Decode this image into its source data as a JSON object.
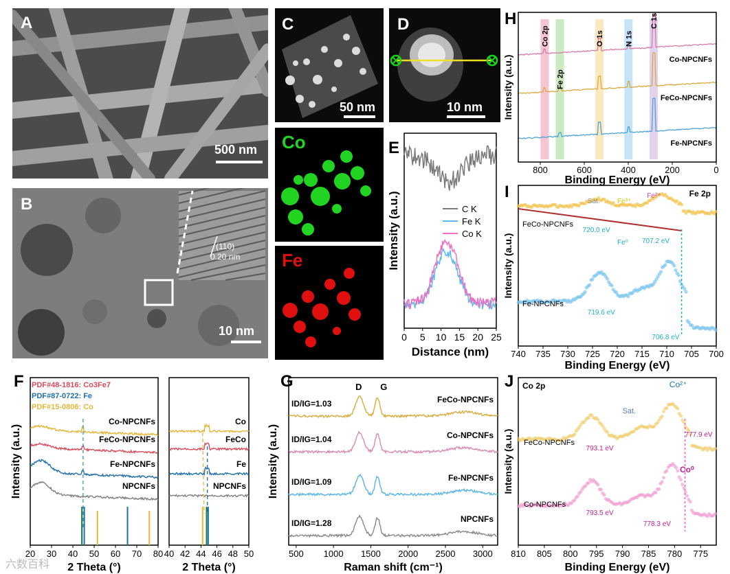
{
  "panels": {
    "A": {
      "letter": "A",
      "scale": "500 nm"
    },
    "B": {
      "letter": "B",
      "scale": "10 nm",
      "lattice_plane": "(110)",
      "lattice_spacing": "0.20 nm"
    },
    "C": {
      "letter": "C",
      "scale": "50 nm"
    },
    "C_co": {
      "label": "Co"
    },
    "C_fe": {
      "label": "Fe"
    },
    "D": {
      "letter": "D",
      "scale": "10 nm"
    },
    "E": {
      "letter": "E"
    },
    "F": {
      "letter": "F"
    },
    "G": {
      "letter": "G"
    },
    "H": {
      "letter": "H"
    },
    "I": {
      "letter": "I"
    },
    "J": {
      "letter": "J"
    }
  },
  "watermark": "六数百科",
  "colors": {
    "co_npcnfs": "#e4b73a",
    "feco_npcnfs": "#d94a5a",
    "fe_npcnfs": "#1f6fa8",
    "npcnfs": "#808080",
    "co_map": "#22d422",
    "fe_map": "#e01010",
    "c_k": "#7a7a7a",
    "fe_k": "#5cb8e8",
    "co_k": "#ee6fc3"
  },
  "chart_data": [
    {
      "id": "E",
      "type": "line",
      "xlabel": "Distance (nm)",
      "ylabel": "Intensity (a.u.)",
      "xlim": [
        0,
        25
      ],
      "xticks": [
        0,
        5,
        10,
        15,
        20,
        25
      ],
      "legend": "center-right",
      "series": [
        {
          "name": "C K",
          "values_profile": "high, dips near 10-15 nm"
        },
        {
          "name": "Fe K",
          "values_profile": "low, peak near 12 nm"
        },
        {
          "name": "Co K",
          "values_profile": "low, peak near 12 nm"
        }
      ],
      "legend_labels": [
        "C K",
        "Fe K",
        "Co K"
      ]
    },
    {
      "id": "F",
      "type": "line",
      "xlabel": "2 Theta (°)",
      "xlabel2": "2 Theta (°)",
      "ylabel": "Intensity (a.u.)",
      "xlim": [
        20,
        80
      ],
      "xticks": [
        20,
        30,
        40,
        50,
        60,
        70,
        80
      ],
      "xlim2": [
        40,
        50
      ],
      "xticks2": [
        40,
        42,
        44,
        46,
        48,
        50
      ],
      "legend": [
        "PDF#48-1816: Co3Fe7",
        "PDF#87-0722: Fe",
        "PDF#15-0806: Co"
      ],
      "legend_colors": [
        "#d94a5a",
        "#1f6fa8",
        "#e4b73a"
      ],
      "series_labels": [
        "Co-NPCNFs",
        "FeCo-NPCNFs",
        "Fe-NPCNFs",
        "NPCNFs"
      ],
      "series_labels2": [
        "Co",
        "FeCo",
        "Fe",
        "NPCNFs"
      ],
      "ref_lines_fe": [
        44.7,
        65.0
      ],
      "ref_lines_co": [
        44.2,
        51.5,
        75.9
      ],
      "ref_lines_cofe": [
        44.9
      ]
    },
    {
      "id": "G",
      "type": "line",
      "xlabel": "Raman shift (cm⁻¹)",
      "ylabel": "Intensity (a.u.)",
      "xlim": [
        400,
        3200
      ],
      "xticks": [
        500,
        1000,
        1500,
        2000,
        2500,
        3000
      ],
      "peaks": {
        "D": 1350,
        "G": 1590
      },
      "series": [
        {
          "name": "FeCo-NPCNFs",
          "ratio": "1.03"
        },
        {
          "name": "Co-NPCNFs",
          "ratio": "1.04"
        },
        {
          "name": "Fe-NPCNFs",
          "ratio": "1.09"
        },
        {
          "name": "NPCNFs",
          "ratio": "1.28"
        }
      ]
    },
    {
      "id": "H",
      "type": "line",
      "xlabel": "Binding Energy (eV)",
      "ylabel": "Intensity (a.u.)",
      "xlim": [
        900,
        0
      ],
      "xticks": [
        800,
        600,
        400,
        200,
        0
      ],
      "bands": [
        "Co 2p",
        "Fe 2p",
        "O 1s",
        "N 1s",
        "C 1s"
      ],
      "band_positions": [
        780,
        711,
        531,
        399,
        284.6
      ],
      "series": [
        "Co-NPCNFs",
        "FeCo-NPCNFs",
        "Fe-NPCNFs"
      ]
    },
    {
      "id": "I",
      "type": "line",
      "title": "Fe 2p",
      "xlabel": "Binding Energy (eV)",
      "ylabel": "Intensity (a.u.)",
      "xlim": [
        740,
        700
      ],
      "xticks": [
        740,
        735,
        730,
        725,
        720,
        715,
        710,
        705,
        700
      ],
      "series": [
        "FeCo-NPCNFs",
        "Fe-NPCNFs"
      ],
      "annotations": {
        "sat": "Sat.",
        "fe3": "Fe³⁺",
        "fe2": "Fe²⁺",
        "fe0": "Fe⁰",
        "e1": "720.0 eV",
        "e2": "707.2 eV",
        "e3": "719.6 eV",
        "e4": "706.8 eV"
      }
    },
    {
      "id": "J",
      "type": "line",
      "title": "Co 2p",
      "xlabel": "Binding Energy (eV)",
      "ylabel": "Intensity (a.u.)",
      "xlim": [
        810,
        772
      ],
      "xticks": [
        810,
        805,
        800,
        795,
        790,
        785,
        780,
        775
      ],
      "series": [
        "FeCo-NPCNFs",
        "Co-NPCNFs"
      ],
      "annotations": {
        "sat": "Sat.",
        "co2": "Co²⁺",
        "co0": "Co⁰",
        "e1": "777.9 eV",
        "e2": "793.1 eV",
        "e3": "793.5 eV",
        "e4": "778.3 eV"
      }
    }
  ]
}
